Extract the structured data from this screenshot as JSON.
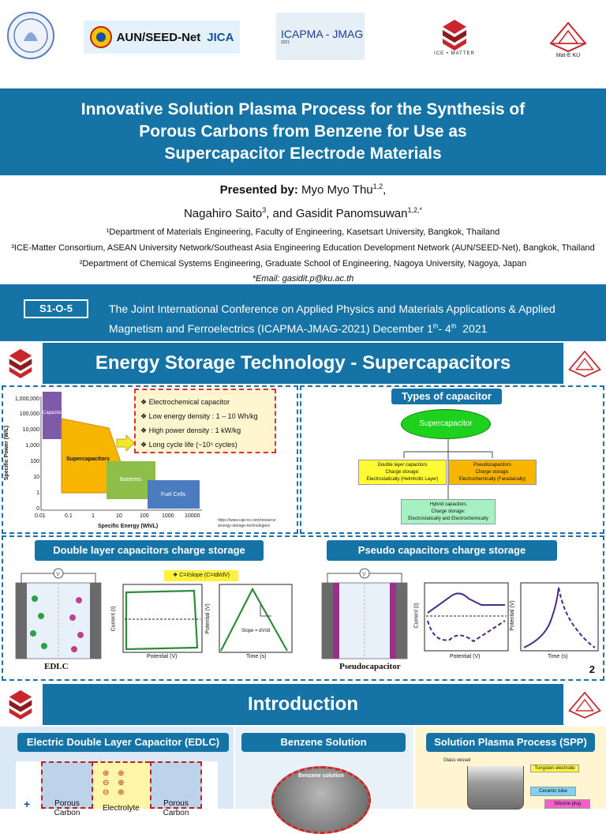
{
  "header": {
    "logos": [
      {
        "name": "university-seal"
      },
      {
        "name": "aun-seed-net",
        "text": "AUN/SEED-Net",
        "text2": "JICA"
      },
      {
        "name": "icapma-jmag",
        "text": "ICAPMA - JMAG",
        "sub": "2021"
      },
      {
        "name": "ice-matter",
        "text": "ICE • MATTER"
      },
      {
        "name": "mat-e-ku",
        "text": "Mat-E KU"
      }
    ]
  },
  "title": {
    "line1": "Innovative Solution Plasma Process for the Synthesis of",
    "line2": "Porous Carbons from Benzene for Use as",
    "line3": "Supercapacitor Electrode Materials"
  },
  "authors": {
    "presented_by": "Presented by:",
    "author1": "Myo Myo Thu",
    "author1_sup": "1,2",
    "author1_tail": ",",
    "author2": "Nagahiro Saito",
    "author2_sup": "3",
    "and_text": ", and Gasidit Panomsuwan",
    "author3_sup": "1,2,*",
    "aff1": "¹Department of Materials Engineering, Faculty of Engineering, Kasetsart University, Bangkok, Thailand",
    "aff2": "³ICE-Matter Consortium, ASEAN University Network/Southeast Asia Engineering Education Development Network (AUN/SEED-Net), Bangkok, Thailand",
    "aff3": "²Department of Chemical Systems Engineering, Graduate School of Engineering, Nagoya University, Nagoya, Japan",
    "email": "*Email: gasidit.p@ku.ac.th"
  },
  "conference": {
    "code": "S1-O-5",
    "line1": "The Joint International Conference on Applied Physics and Materials Applications & Applied",
    "line2a": "Magnetism and Ferroelectrics (ICAPMA-JMAG-2021) December 1",
    "sup1": "th",
    "dash": "- 4",
    "sup2": "th",
    "year": "  2021"
  },
  "slide2": {
    "heading": "Energy Storage Technology - Supercapacitors",
    "ragone": {
      "y_label": "Specific Power (W/L)",
      "x_label": "Specific Energy (Wh/L)",
      "y_ticks": [
        "1,000,000",
        "100,000",
        "10,000",
        "1,000",
        "100",
        "10",
        "1",
        "0"
      ],
      "x_ticks": [
        "0.01",
        "0.1",
        "1",
        "10",
        "100",
        "1000",
        "10000"
      ],
      "capacitors": "Capacitors",
      "supercapacitors": "Supercapacitors",
      "batteries": "Batteries",
      "fuel_cells": "Fuel Cells",
      "source1": "https://www.cap-xx.com/resource",
      "source2": "/energy-storage-technologies/"
    },
    "bullets": [
      "Electrochemical capacitor",
      "Low energy density : 1 – 10 Wh/kg",
      "High power density : 1 kW/kg",
      "Long cycle life (~10⁵ cycles)"
    ],
    "types": {
      "title": "Types of capacitor",
      "root": "Supercapacitor",
      "double_layer": [
        "Double layer capacitors",
        "Charge storage:",
        "Electrostatically (Helmholtz Layer)"
      ],
      "pseudo": [
        "Pseudocapacitors",
        "Charge storage:",
        "Electrochemically (Faradaically)"
      ],
      "hybrid": [
        "Hybrid capacitors",
        "Charge storage:",
        "Electrostatically and Electrochemically"
      ]
    },
    "edlc_title": "Double layer capacitors charge storage",
    "pseudo_title": "Pseudo capacitors charge storage",
    "formula": "❖ C=I/slope (C=Idt/dV)",
    "edlc_label": "EDLC",
    "pseudo_label": "Pseudocapacitor",
    "current_label": "Current (I)",
    "potential_label": "Potential (V)",
    "time_label": "Time (s)",
    "slope_label": "Slope = dV/dt",
    "page_number": "2"
  },
  "slide3": {
    "heading": "Introduction",
    "col1": "Electric Double Layer Capacitor (EDLC)",
    "col2": "Benzene Solution",
    "col3": "Solution Plasma Process (SPP)",
    "porous_carbon": "Porous Carbon",
    "electrolyte": "Electrolyte",
    "benzene_label": "Benzene solution",
    "glass_vessel": "Glass vessel",
    "tungsten": "Tungsten electrode",
    "ceramic": "Ceramic tube",
    "silicone": "Silicone plug"
  },
  "colors": {
    "band": "#1673a5",
    "dash": "#1e6fa8",
    "green": "#2e8b3a",
    "purple": "#4b2a8a"
  }
}
